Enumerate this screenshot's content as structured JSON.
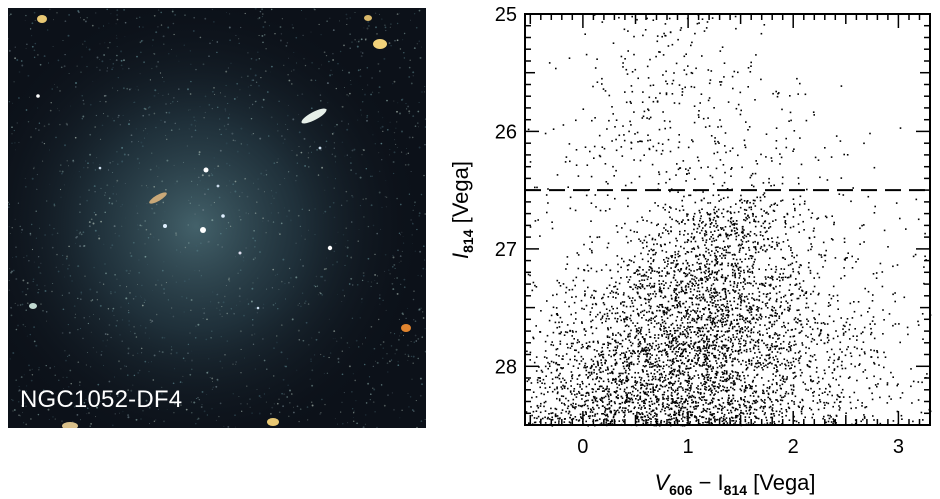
{
  "image_panel": {
    "label": "NGC1052-DF4"
  },
  "chart_data": {
    "type": "scatter",
    "x": {
      "label_main": "V",
      "label_sub1": "606",
      "label_mid": " − I",
      "label_sub2": "814",
      "label_tail": "  [Vega]",
      "lim": [
        -0.55,
        3.3
      ],
      "ticks": [
        0,
        1,
        2,
        3
      ],
      "tick_labels": [
        "0",
        "1",
        "2",
        "3"
      ]
    },
    "y": {
      "label_main": "I",
      "label_sub": "814",
      "label_tail": "  [Vega]",
      "lim": [
        28.5,
        25
      ],
      "inverted": true,
      "ticks": [
        25,
        26,
        27,
        28
      ],
      "tick_labels": [
        "25",
        "26",
        "27",
        "28"
      ]
    },
    "reference_line": {
      "y": 26.5,
      "style": "dashed"
    },
    "points_summary": {
      "description": "thousands of stars; dense red-giant branch concentrated around color 0.6–1.8 and I fainter than 26.5, sparse above",
      "center_color": 1.15,
      "center_mag": 27.5
    }
  }
}
